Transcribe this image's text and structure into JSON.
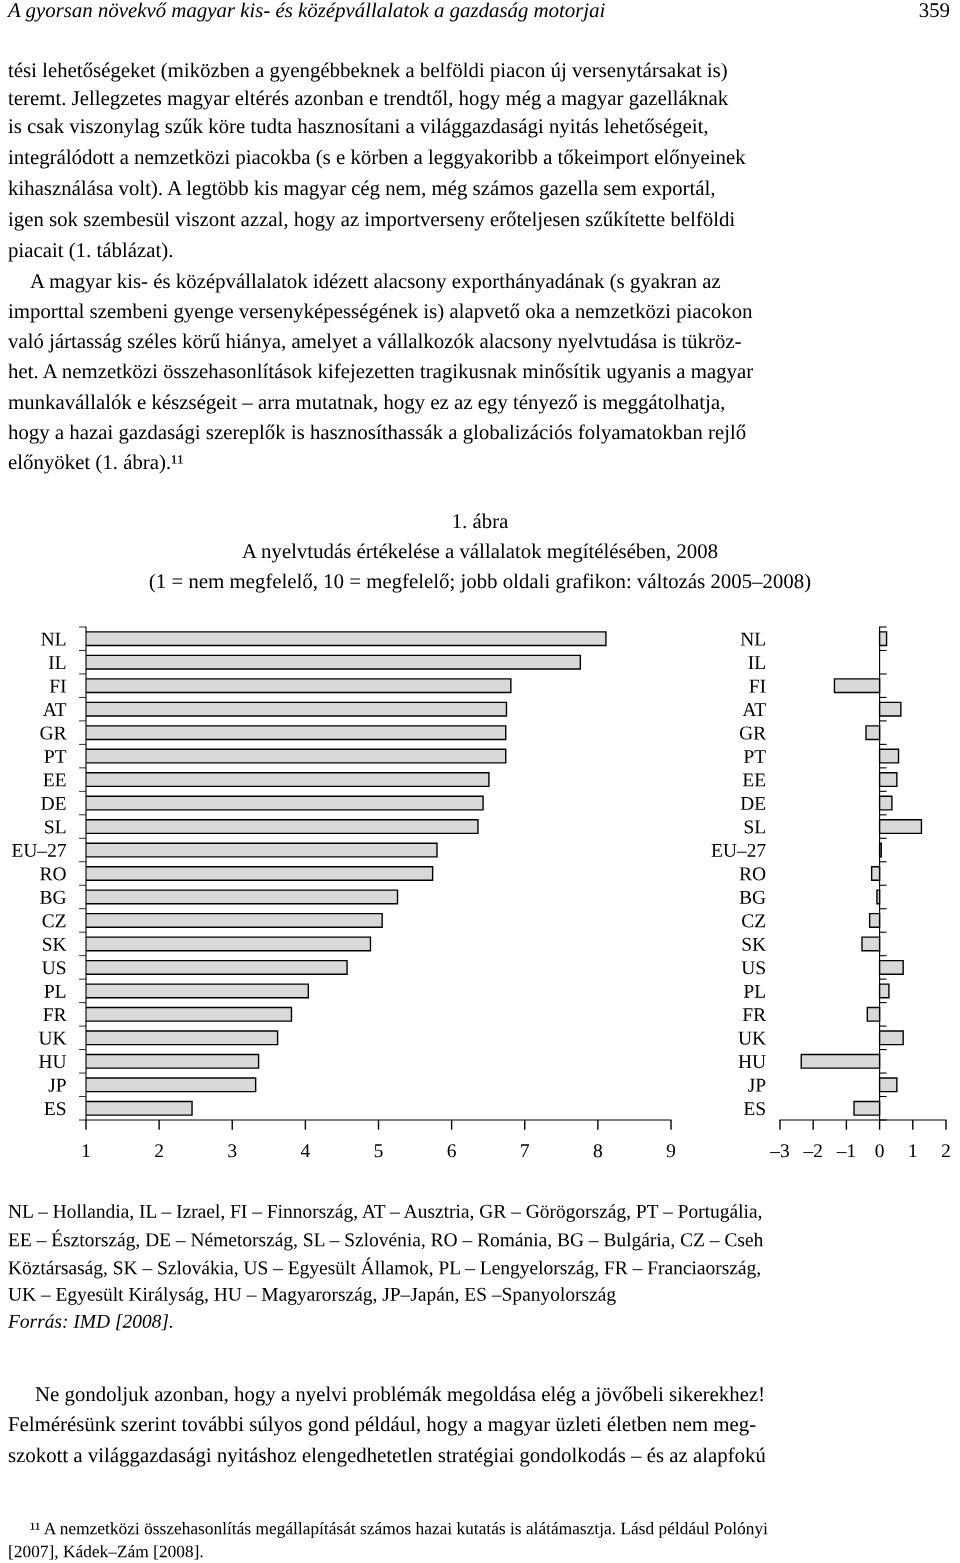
{
  "chart_data": [
    {
      "type": "bar",
      "orientation": "horizontal",
      "title": "A nyelvtudás értékelése a vállalatok megítélésében, 2008",
      "subtitle": "(1 = nem megfelelő, 10 = megfelelő; jobb oldali grafikon: változás 2005–2008)",
      "categories": [
        "NL",
        "IL",
        "FI",
        "AT",
        "GR",
        "PT",
        "EE",
        "DE",
        "SL",
        "EU–27",
        "RO",
        "BG",
        "CZ",
        "SK",
        "US",
        "PL",
        "FR",
        "UK",
        "HU",
        "JP",
        "ES"
      ],
      "values": [
        8.11,
        7.76,
        6.81,
        6.75,
        6.74,
        6.74,
        6.51,
        6.43,
        6.36,
        5.8,
        5.74,
        5.26,
        5.05,
        4.89,
        4.57,
        4.04,
        3.81,
        3.62,
        3.36,
        3.32,
        2.45
      ],
      "color": "#d9d9d9",
      "xlim": [
        1,
        9
      ],
      "xticks": [
        1,
        2,
        3,
        4,
        5,
        6,
        7,
        8,
        9
      ],
      "annotations": [
        "A gyorsan növekvő magyar kis- és középvállalatok a gazdaság motorjai",
        "359",
        "tési lehetőségeket (miközben a gyengébbeknek a belföldi piacon új versenytársakat is)",
        "teremt. Jellegzetes magyar eltérés azonban e trendtől, hogy még a magyar gazelláknak",
        "is csak viszonylag szűk köre tudta hasznosítani a világgazdasági nyitás lehetőségeit,",
        "integrálódott a nemzetközi piacokba (s e körben a leggyakoribb a tőkeimport előnyeinek",
        "kihasználása volt). A legtöbb kis magyar cég nem, még számos gazella sem exportál,",
        "igen sok szembesül viszont azzal, hogy az importverseny erőteljesen szűkítette belföldi",
        "piacait (1. táblázat).",
        "A magyar kis- és középvállalatok idézett alacsony exporthányadának (s gyakran az",
        "importtal szembeni gyenge versenyképességének is) alapvető oka a nemzetközi piacokon",
        "való jártasság széles körű hiánya, amelyet a vállalkozók alacsony nyelvtudása is tükröz-",
        "het. A nemzetközi összehasonlítások kifejezetten tragikusnak minősítik ugyanis a magyar",
        "munkavállalók e készségeit – arra mutatnak, hogy ez az egy tényező is meggátolhatja,",
        "hogy a hazai gazdasági szereplők is hasznosíthassák a globalizációs folyamatokban rejlő",
        "előnyöket (1. ábra).¹¹",
        "1. ábra",
        "NL – Hollandia, IL – Izrael, FI – Finnország, AT – Ausztria, GR – Görögország, PT – Portugália,",
        "EE – Észtország, DE – Németország, SL – Szlovénia, RO – Románia, BG – Bulgária, CZ – Cseh",
        "Köztársaság, SK – Szlovákia, US – Egyesült Államok, PL – Lengyelország, FR – Franciaország,",
        "UK – Egyesült Királyság, HU – Magyarország, JP–Japán, ES –Spanyolország",
        "Forrás: IMD [2008].",
        "Ne gondoljuk azonban, hogy a nyelvi problémák megoldása elég a jövőbeli sikerekhez!",
        "Felmérésünk szerint további súlyos gond például, hogy a magyar üzleti életben nem meg-",
        "szokott a világgazdasági nyitáshoz elengedhetetlen stratégiai gondolkodás – és az alapfokú",
        "¹¹ A nemzetközi összehasonlítás megállapítását számos hazai kutatás is alátámasztja. Lásd például Polónyi",
        "[2007], Kádek–Zám [2008]."
      ]
    },
    {
      "type": "bar",
      "orientation": "horizontal",
      "categories": [
        "NL",
        "IL",
        "FI",
        "AT",
        "GR",
        "PT",
        "EE",
        "DE",
        "SL",
        "EU–27",
        "RO",
        "BG",
        "CZ",
        "SK",
        "US",
        "PL",
        "FR",
        "UK",
        "HU",
        "JP",
        "ES"
      ],
      "values": [
        0.21,
        null,
        -1.36,
        0.64,
        -0.41,
        0.57,
        0.52,
        0.37,
        1.26,
        0.05,
        -0.24,
        -0.08,
        -0.3,
        -0.53,
        0.71,
        0.28,
        -0.37,
        0.71,
        -2.36,
        0.52,
        -0.77
      ],
      "color": "#d9d9d9",
      "xlim": [
        -3,
        2
      ],
      "xticks": [
        {
          "value": -3,
          "label": "–3"
        },
        {
          "value": -2,
          "label": "–2"
        },
        {
          "value": -1,
          "label": "–1"
        },
        0,
        1,
        2
      ]
    }
  ]
}
